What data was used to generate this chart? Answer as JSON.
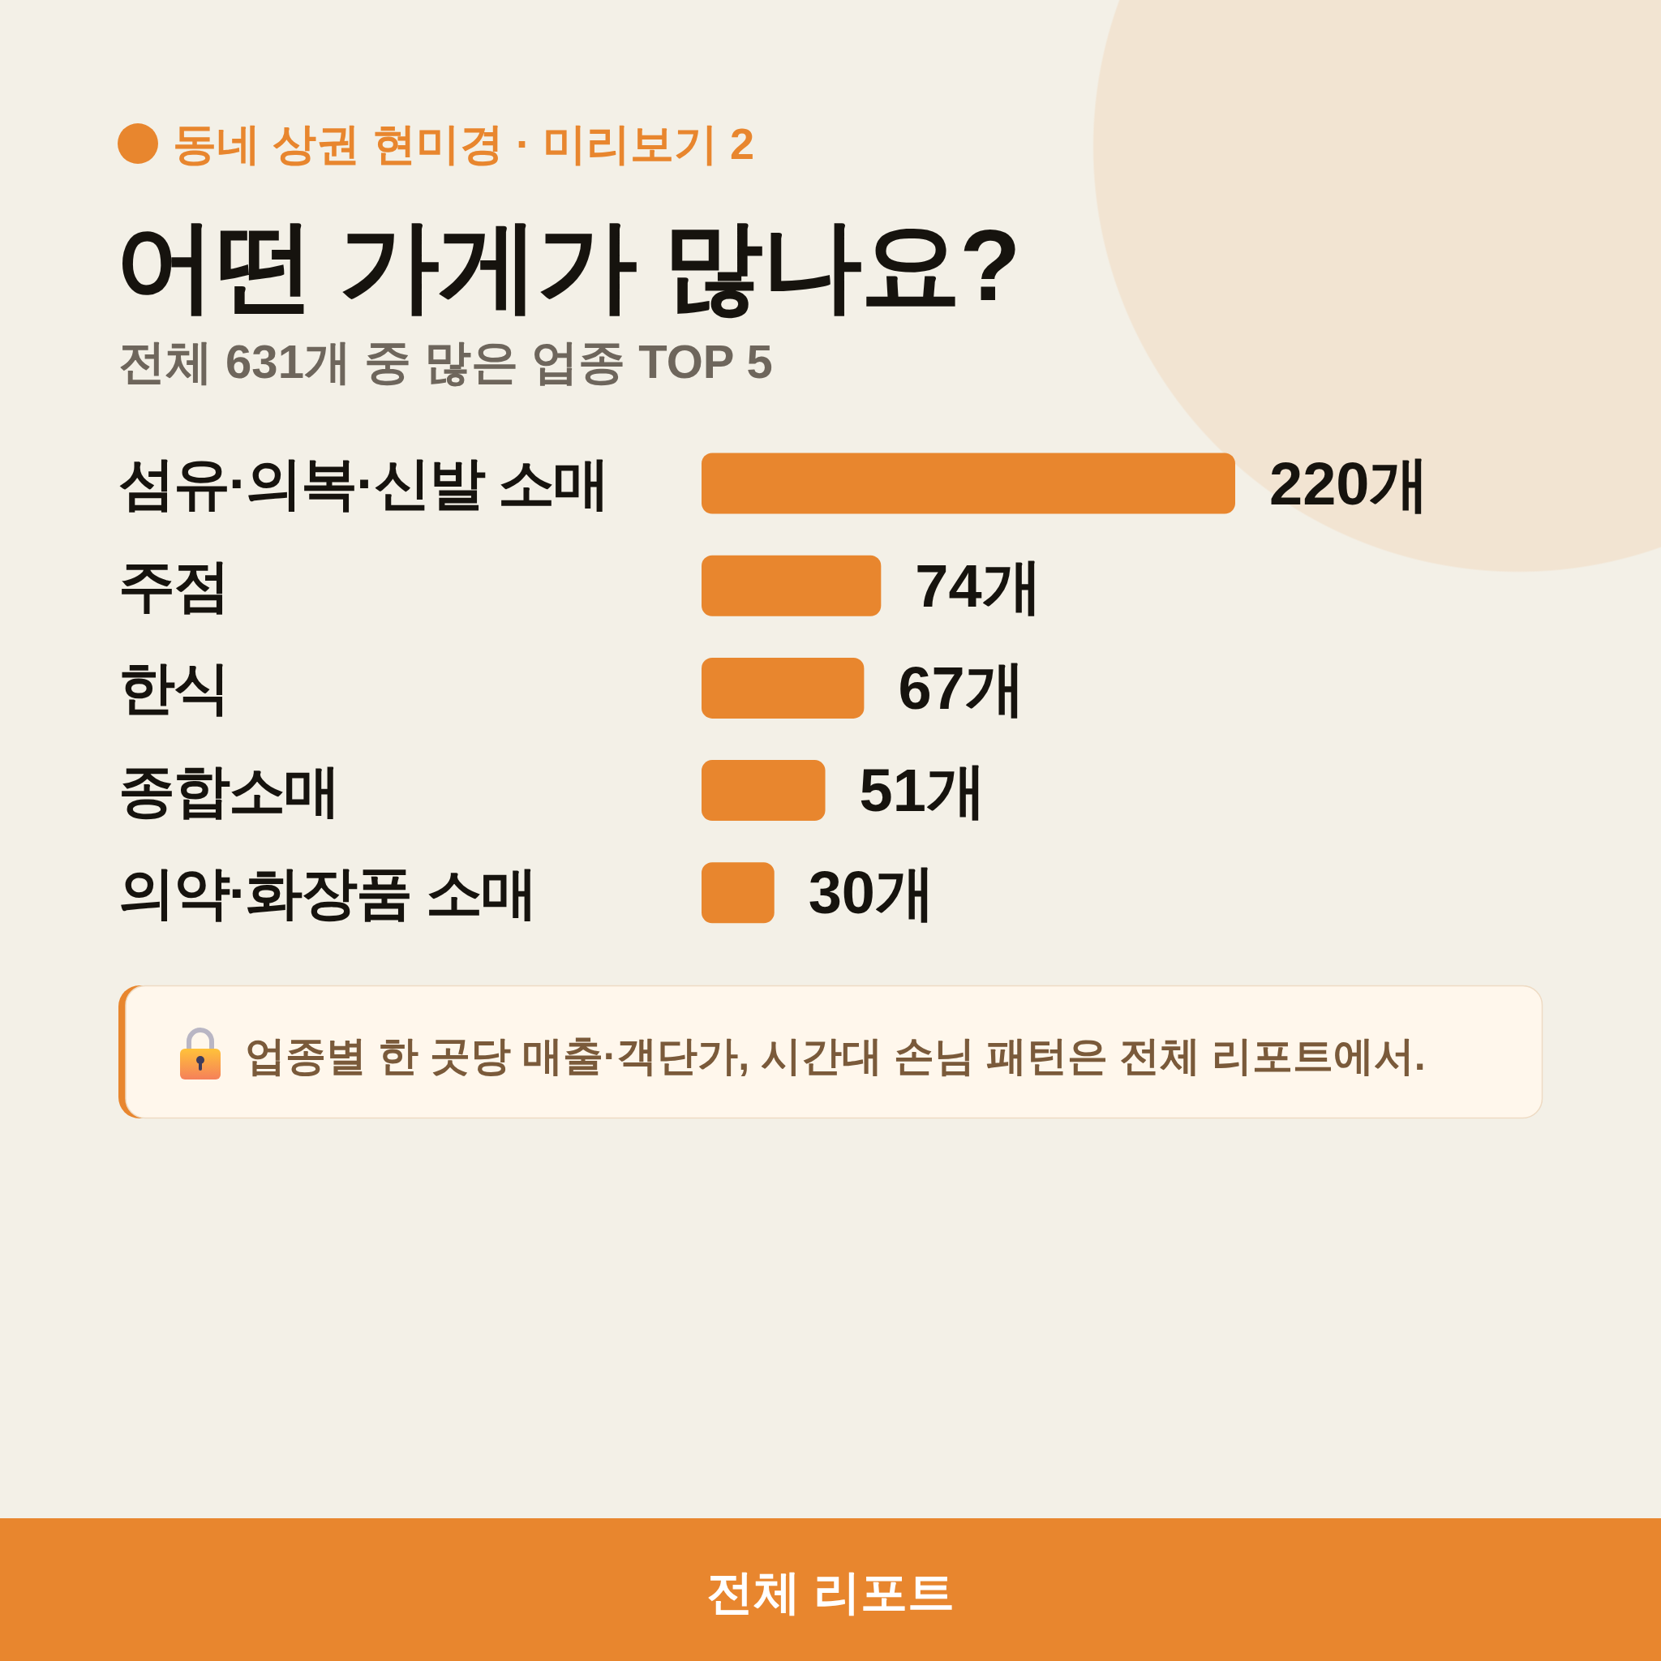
{
  "chart_data": {
    "type": "bar",
    "orientation": "horizontal",
    "title": "어떤 가게가 많나요?",
    "subtitle": "전체 631개 중 많은 업종 TOP 5",
    "categories": [
      "섬유·의복·신발 소매",
      "주점",
      "한식",
      "종합소매",
      "의약·화장품 소매"
    ],
    "values": [
      220,
      74,
      67,
      51,
      30
    ],
    "color": "#e8862e",
    "value_labels": [
      "220개",
      "74개",
      "67개",
      "51개",
      "30개"
    ],
    "annotations": [
      "동네 상권 현미경 · 미리보기 2",
      "업종별 한 곳당 매출·객단가, 시간대 손님 패턴은 전체 리포트에서.",
      "전체 리포트"
    ]
  }
}
